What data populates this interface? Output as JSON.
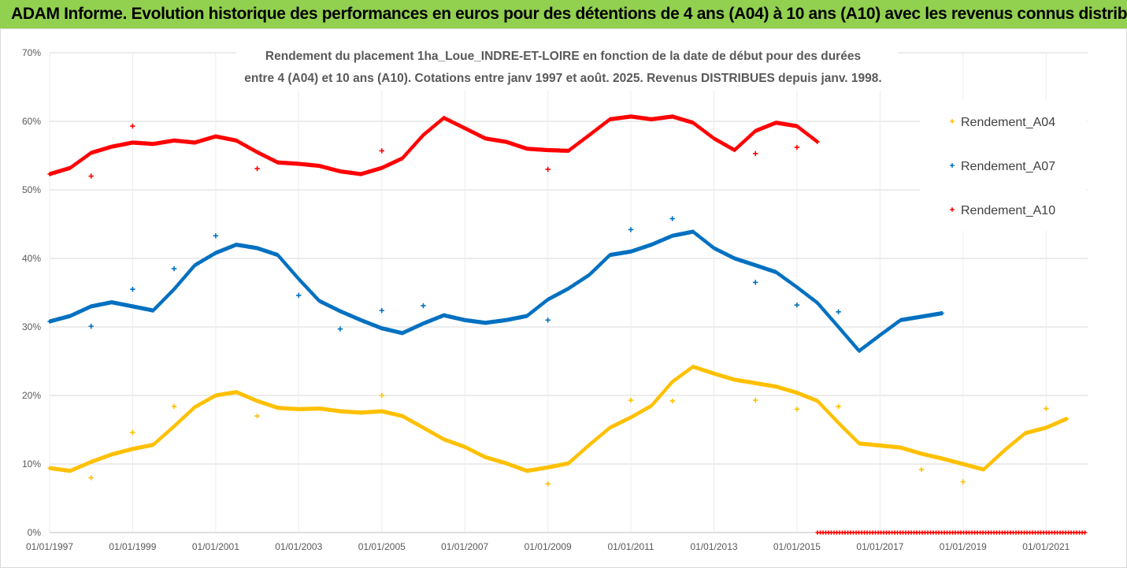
{
  "banner": {
    "title": "ADAM Informe. Evolution historique des performances en euros pour des détentions de 4 ans (A04) à 10 ans (A10) avec les revenus connus distribués",
    "background": "#92d050"
  },
  "chart_data": {
    "type": "scatter",
    "title_lines": [
      "Rendement du placement 1ha_Loue_INDRE-ET-LOIRE en fonction de la date de début pour des durées",
      "entre 4 (A04) et 10 ans (A10). Cotations entre janv 1997 et août. 2025. Revenus DISTRIBUES depuis janv. 1998."
    ],
    "xlabel": "",
    "ylabel": "",
    "xlim": [
      "1997-01-01",
      "2022-01-01"
    ],
    "x_ticks": [
      "01/01/1997",
      "01/01/1999",
      "01/01/2001",
      "01/01/2003",
      "01/01/2005",
      "01/01/2007",
      "01/01/2009",
      "01/01/2011",
      "01/01/2013",
      "01/01/2015",
      "01/01/2017",
      "01/01/2019",
      "01/01/2021"
    ],
    "ylim": [
      0,
      70
    ],
    "y_ticks": [
      "0%",
      "10%",
      "20%",
      "30%",
      "40%",
      "50%",
      "60%",
      "70%"
    ],
    "grid": "horizontal",
    "legend_position": "right",
    "marker": "+",
    "series": [
      {
        "name": "Rendement_A04",
        "color": "#ffc000",
        "points": [
          [
            "1997-01-01",
            9.4
          ],
          [
            "1997-07-01",
            9.0
          ],
          [
            "1998-01-01",
            10.3
          ],
          [
            "1998-07-01",
            11.4
          ],
          [
            "1999-01-01",
            12.2
          ],
          [
            "1999-07-01",
            12.8
          ],
          [
            "2000-01-01",
            15.5
          ],
          [
            "2000-07-01",
            18.3
          ],
          [
            "2001-01-01",
            20.0
          ],
          [
            "2001-07-01",
            20.5
          ],
          [
            "2002-01-01",
            19.2
          ],
          [
            "2002-07-01",
            18.2
          ],
          [
            "2003-01-01",
            18.0
          ],
          [
            "2003-07-01",
            18.1
          ],
          [
            "2004-01-01",
            17.7
          ],
          [
            "2004-07-01",
            17.5
          ],
          [
            "2005-01-01",
            17.7
          ],
          [
            "2005-07-01",
            17.0
          ],
          [
            "2006-01-01",
            15.3
          ],
          [
            "2006-07-01",
            13.6
          ],
          [
            "2007-01-01",
            12.5
          ],
          [
            "2007-07-01",
            11.0
          ],
          [
            "2008-01-01",
            10.1
          ],
          [
            "2008-07-01",
            9.0
          ],
          [
            "2009-01-01",
            9.5
          ],
          [
            "2009-07-01",
            10.1
          ],
          [
            "2010-01-01",
            12.8
          ],
          [
            "2010-07-01",
            15.3
          ],
          [
            "2011-01-01",
            16.8
          ],
          [
            "2011-07-01",
            18.5
          ],
          [
            "2012-01-01",
            22.0
          ],
          [
            "2012-07-01",
            24.2
          ],
          [
            "2013-01-01",
            23.2
          ],
          [
            "2013-07-01",
            22.3
          ],
          [
            "2014-01-01",
            21.8
          ],
          [
            "2014-07-01",
            21.3
          ],
          [
            "2015-01-01",
            20.4
          ],
          [
            "2015-07-01",
            19.2
          ],
          [
            "2016-01-01",
            16.0
          ],
          [
            "2016-07-01",
            13.0
          ],
          [
            "2017-01-01",
            12.7
          ],
          [
            "2017-07-01",
            12.4
          ],
          [
            "2018-01-01",
            11.5
          ],
          [
            "2018-07-01",
            10.8
          ],
          [
            "2019-01-01",
            10.0
          ],
          [
            "2019-07-01",
            9.2
          ],
          [
            "2020-01-01",
            12.0
          ],
          [
            "2020-07-01",
            14.5
          ],
          [
            "2021-01-01",
            15.3
          ],
          [
            "2021-07-01",
            16.6
          ]
        ],
        "outliers": [
          [
            "1998-01-01",
            8.0
          ],
          [
            "1999-01-01",
            14.6
          ],
          [
            "2000-01-01",
            18.4
          ],
          [
            "2002-01-01",
            17.0
          ],
          [
            "2005-01-01",
            20.0
          ],
          [
            "2009-01-01",
            7.1
          ],
          [
            "2011-01-01",
            19.3
          ],
          [
            "2012-01-01",
            19.2
          ],
          [
            "2014-01-01",
            19.3
          ],
          [
            "2015-01-01",
            18.0
          ],
          [
            "2016-01-01",
            18.4
          ],
          [
            "2018-01-01",
            9.2
          ],
          [
            "2019-01-01",
            7.4
          ],
          [
            "2021-01-01",
            18.1
          ]
        ]
      },
      {
        "name": "Rendement_A07",
        "color": "#0070c0",
        "points": [
          [
            "1997-01-01",
            30.8
          ],
          [
            "1997-07-01",
            31.6
          ],
          [
            "1998-01-01",
            33.0
          ],
          [
            "1998-07-01",
            33.6
          ],
          [
            "1999-01-01",
            33.0
          ],
          [
            "1999-07-01",
            32.4
          ],
          [
            "2000-01-01",
            35.5
          ],
          [
            "2000-07-01",
            39.0
          ],
          [
            "2001-01-01",
            40.8
          ],
          [
            "2001-07-01",
            42.0
          ],
          [
            "2002-01-01",
            41.5
          ],
          [
            "2002-07-01",
            40.5
          ],
          [
            "2003-01-01",
            37.0
          ],
          [
            "2003-07-01",
            33.8
          ],
          [
            "2004-01-01",
            32.3
          ],
          [
            "2004-07-01",
            31.0
          ],
          [
            "2005-01-01",
            29.8
          ],
          [
            "2005-07-01",
            29.1
          ],
          [
            "2006-01-01",
            30.5
          ],
          [
            "2006-07-01",
            31.7
          ],
          [
            "2007-01-01",
            31.0
          ],
          [
            "2007-07-01",
            30.6
          ],
          [
            "2008-01-01",
            31.0
          ],
          [
            "2008-07-01",
            31.6
          ],
          [
            "2009-01-01",
            34.0
          ],
          [
            "2009-07-01",
            35.6
          ],
          [
            "2010-01-01",
            37.6
          ],
          [
            "2010-07-01",
            40.5
          ],
          [
            "2011-01-01",
            41.0
          ],
          [
            "2011-07-01",
            42.0
          ],
          [
            "2012-01-01",
            43.3
          ],
          [
            "2012-07-01",
            43.9
          ],
          [
            "2013-01-01",
            41.5
          ],
          [
            "2013-07-01",
            40.0
          ],
          [
            "2014-01-01",
            39.0
          ],
          [
            "2014-07-01",
            38.0
          ],
          [
            "2015-01-01",
            35.8
          ],
          [
            "2015-07-01",
            33.5
          ],
          [
            "2016-01-01",
            30.0
          ],
          [
            "2016-07-01",
            26.5
          ],
          [
            "2017-01-01",
            28.8
          ],
          [
            "2017-07-01",
            31.0
          ],
          [
            "2018-01-01",
            31.5
          ],
          [
            "2018-07-01",
            32.0
          ]
        ],
        "outliers": [
          [
            "1998-01-01",
            30.1
          ],
          [
            "1999-01-01",
            35.5
          ],
          [
            "2000-01-01",
            38.5
          ],
          [
            "2001-01-01",
            43.3
          ],
          [
            "2003-01-01",
            34.6
          ],
          [
            "2004-01-01",
            29.7
          ],
          [
            "2005-01-01",
            32.4
          ],
          [
            "2006-01-01",
            33.1
          ],
          [
            "2009-01-01",
            31.0
          ],
          [
            "2011-01-01",
            44.2
          ],
          [
            "2012-01-01",
            45.8
          ],
          [
            "2014-01-01",
            36.5
          ],
          [
            "2015-01-01",
            33.2
          ],
          [
            "2016-01-01",
            32.2
          ]
        ]
      },
      {
        "name": "Rendement_A10",
        "color": "#ff0000",
        "points": [
          [
            "1997-01-01",
            52.3
          ],
          [
            "1997-07-01",
            53.2
          ],
          [
            "1998-01-01",
            55.4
          ],
          [
            "1998-07-01",
            56.3
          ],
          [
            "1999-01-01",
            56.9
          ],
          [
            "1999-07-01",
            56.7
          ],
          [
            "2000-01-01",
            57.2
          ],
          [
            "2000-07-01",
            56.9
          ],
          [
            "2001-01-01",
            57.8
          ],
          [
            "2001-07-01",
            57.2
          ],
          [
            "2002-01-01",
            55.5
          ],
          [
            "2002-07-01",
            54.0
          ],
          [
            "2003-01-01",
            53.8
          ],
          [
            "2003-07-01",
            53.5
          ],
          [
            "2004-01-01",
            52.7
          ],
          [
            "2004-07-01",
            52.3
          ],
          [
            "2005-01-01",
            53.2
          ],
          [
            "2005-07-01",
            54.6
          ],
          [
            "2006-01-01",
            58.0
          ],
          [
            "2006-07-01",
            60.5
          ],
          [
            "2007-01-01",
            59.0
          ],
          [
            "2007-07-01",
            57.5
          ],
          [
            "2008-01-01",
            57.0
          ],
          [
            "2008-07-01",
            56.0
          ],
          [
            "2009-01-01",
            55.8
          ],
          [
            "2009-07-01",
            55.7
          ],
          [
            "2010-01-01",
            58.0
          ],
          [
            "2010-07-01",
            60.3
          ],
          [
            "2011-01-01",
            60.7
          ],
          [
            "2011-07-01",
            60.3
          ],
          [
            "2012-01-01",
            60.7
          ],
          [
            "2012-07-01",
            59.8
          ],
          [
            "2013-01-01",
            57.5
          ],
          [
            "2013-07-01",
            55.8
          ],
          [
            "2014-01-01",
            58.6
          ],
          [
            "2014-07-01",
            59.8
          ],
          [
            "2015-01-01",
            59.3
          ],
          [
            "2015-07-01",
            57.0
          ]
        ],
        "outliers": [
          [
            "1998-01-01",
            52.0
          ],
          [
            "1999-01-01",
            59.3
          ],
          [
            "2002-01-01",
            53.1
          ],
          [
            "2005-01-01",
            55.7
          ],
          [
            "2009-01-01",
            53.0
          ],
          [
            "2014-01-01",
            55.3
          ],
          [
            "2015-01-01",
            56.2
          ]
        ],
        "zero_segment": [
          "2015-07-01",
          "2022-01-01"
        ]
      }
    ]
  }
}
